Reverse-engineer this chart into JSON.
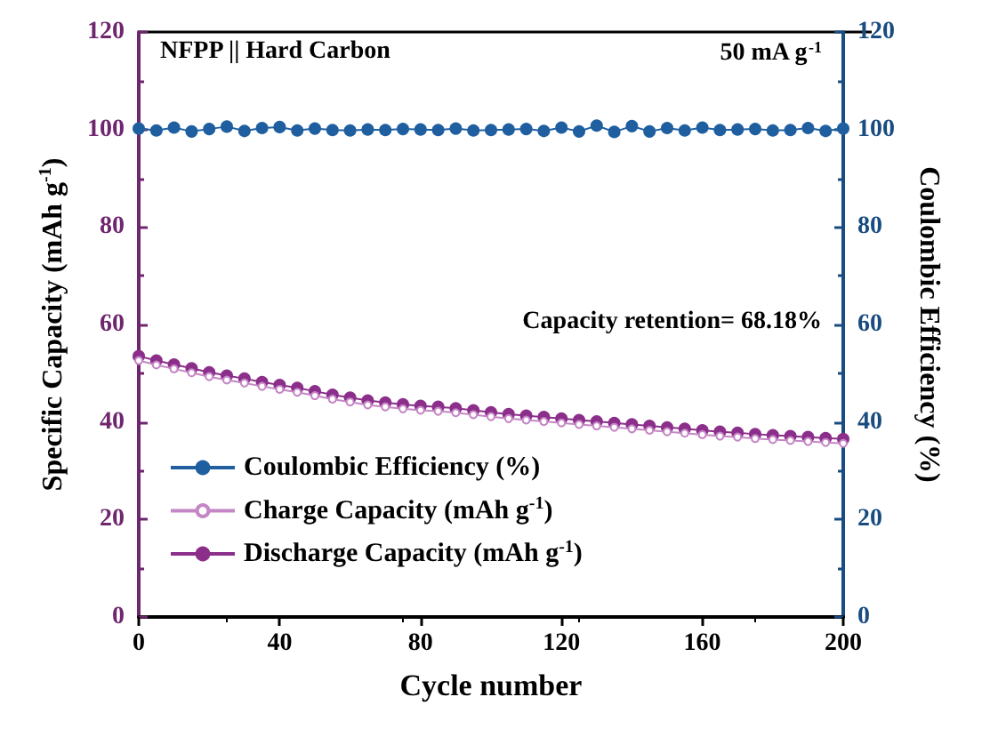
{
  "chart_data": {
    "type": "line",
    "xlabel": "Cycle number",
    "ylabel": "Specific Capacity (mAh g$^{-1}$)",
    "y2label": "Coulombic Efficiency (%)",
    "annotations": [
      "NFPP || Hard Carbon",
      "50 mA g$^{-1}$",
      "Capacity retention= 68.18%"
    ],
    "x": [
      0,
      5,
      10,
      15,
      20,
      25,
      30,
      35,
      40,
      45,
      50,
      55,
      60,
      65,
      70,
      75,
      80,
      85,
      90,
      95,
      100,
      105,
      110,
      115,
      120,
      125,
      130,
      135,
      140,
      145,
      150,
      155,
      160,
      165,
      170,
      175,
      180,
      185,
      190,
      195,
      200
    ],
    "series": [
      {
        "name": "Coulombic Efficiency (%)",
        "color": "#1f5fa0",
        "axis": "y2",
        "values": [
          100.2,
          99.8,
          100.4,
          99.6,
          100.1,
          100.6,
          99.7,
          100.3,
          100.5,
          99.8,
          100.2,
          99.9,
          99.8,
          100.0,
          99.9,
          100.1,
          100.0,
          99.9,
          100.2,
          99.8,
          99.9,
          100.0,
          100.1,
          99.7,
          100.4,
          99.6,
          100.8,
          99.5,
          100.7,
          99.6,
          100.3,
          99.8,
          100.4,
          99.9,
          100.0,
          100.1,
          99.8,
          99.9,
          100.3,
          99.7,
          100.2
        ]
      },
      {
        "name": "Charge Capacity (mAh g$^{-1}$)",
        "color": "#c586c5",
        "values": [
          52.6,
          51.7,
          50.9,
          50.1,
          49.3,
          48.6,
          48.0,
          47.3,
          46.7,
          46.1,
          45.4,
          44.7,
          44.1,
          43.5,
          43.1,
          42.7,
          42.4,
          42.2,
          41.9,
          41.5,
          41.1,
          40.7,
          40.4,
          40.1,
          39.8,
          39.5,
          39.2,
          38.9,
          38.6,
          38.3,
          38.0,
          37.7,
          37.4,
          37.1,
          36.9,
          36.6,
          36.4,
          36.2,
          36.0,
          35.8,
          35.6
        ]
      },
      {
        "name": "Discharge Capacity (mAh g$^{-1}$)",
        "color": "#8b2f8b",
        "values": [
          53.5,
          52.6,
          51.8,
          51.0,
          50.2,
          49.5,
          48.9,
          48.2,
          47.6,
          47.0,
          46.3,
          45.6,
          45.0,
          44.4,
          44.0,
          43.6,
          43.3,
          43.1,
          42.8,
          42.4,
          42.0,
          41.6,
          41.3,
          41.0,
          40.7,
          40.4,
          40.1,
          39.8,
          39.5,
          39.2,
          38.9,
          38.6,
          38.3,
          38.0,
          37.8,
          37.5,
          37.3,
          37.1,
          36.9,
          36.7,
          36.5
        ]
      }
    ],
    "xlim": [
      0,
      200
    ],
    "xticks": [
      0,
      40,
      80,
      120,
      160,
      200
    ],
    "ylim": [
      0,
      120
    ],
    "yticks": [
      0,
      20,
      40,
      60,
      80,
      100,
      120
    ],
    "y2lim": [
      0,
      120
    ],
    "y2ticks": [
      0,
      20,
      40,
      60,
      80,
      100,
      120
    ],
    "marker": "circle",
    "legend": "bottom left",
    "grid": false
  }
}
